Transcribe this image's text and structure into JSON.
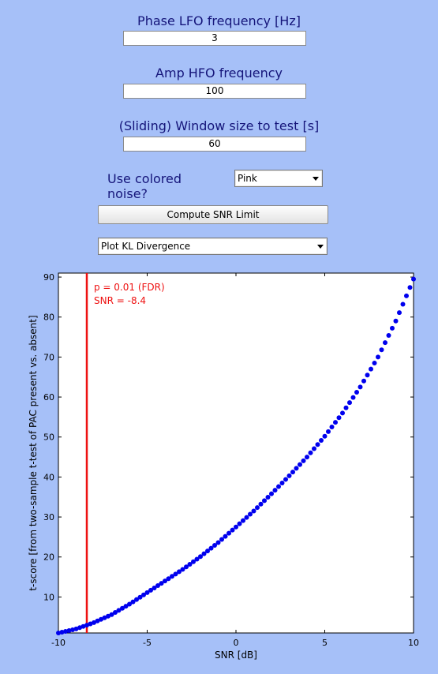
{
  "controls": {
    "phase_label": "Phase LFO frequency [Hz]",
    "phase_value": "3",
    "amp_label": "Amp HFO frequency",
    "amp_value": "100",
    "window_label": "(Sliding) Window size to test [s]",
    "window_value": "60",
    "noise_label": "Use colored noise?",
    "noise_selected": "Pink",
    "compute_button": "Compute SNR Limit",
    "plot_selected": "Plot KL Divergence"
  },
  "colors": {
    "background": "#a6c0f8",
    "label_text": "#15157a",
    "marker": "#0000ee",
    "threshold": "#ee1111"
  },
  "chart_data": {
    "type": "scatter",
    "xlabel": "SNR [dB]",
    "ylabel": "t-score [from two-sample t-test of PAC present vs. absent]",
    "xlim": [
      -10,
      10
    ],
    "ylim": [
      1,
      91
    ],
    "xticks": [
      -10,
      -5,
      0,
      5,
      10
    ],
    "yticks": [
      10,
      20,
      30,
      40,
      50,
      60,
      70,
      80,
      90
    ],
    "grid": false,
    "threshold": {
      "x": -8.4,
      "line1": "p = 0.01 (FDR)",
      "line2": "SNR = -8.4"
    },
    "x": [
      -10,
      -9,
      -8,
      -7,
      -6,
      -5,
      -4,
      -3,
      -2,
      -1,
      0,
      1,
      2,
      3,
      4,
      5,
      6,
      7,
      8,
      9,
      10
    ],
    "y": [
      1.0,
      2.0,
      3.6,
      5.6,
      8.2,
      11.1,
      14.0,
      16.9,
      20.1,
      23.6,
      27.5,
      31.5,
      35.8,
      40.3,
      45.0,
      50.2,
      56.0,
      62.5,
      70.0,
      79.0,
      89.5
    ]
  }
}
